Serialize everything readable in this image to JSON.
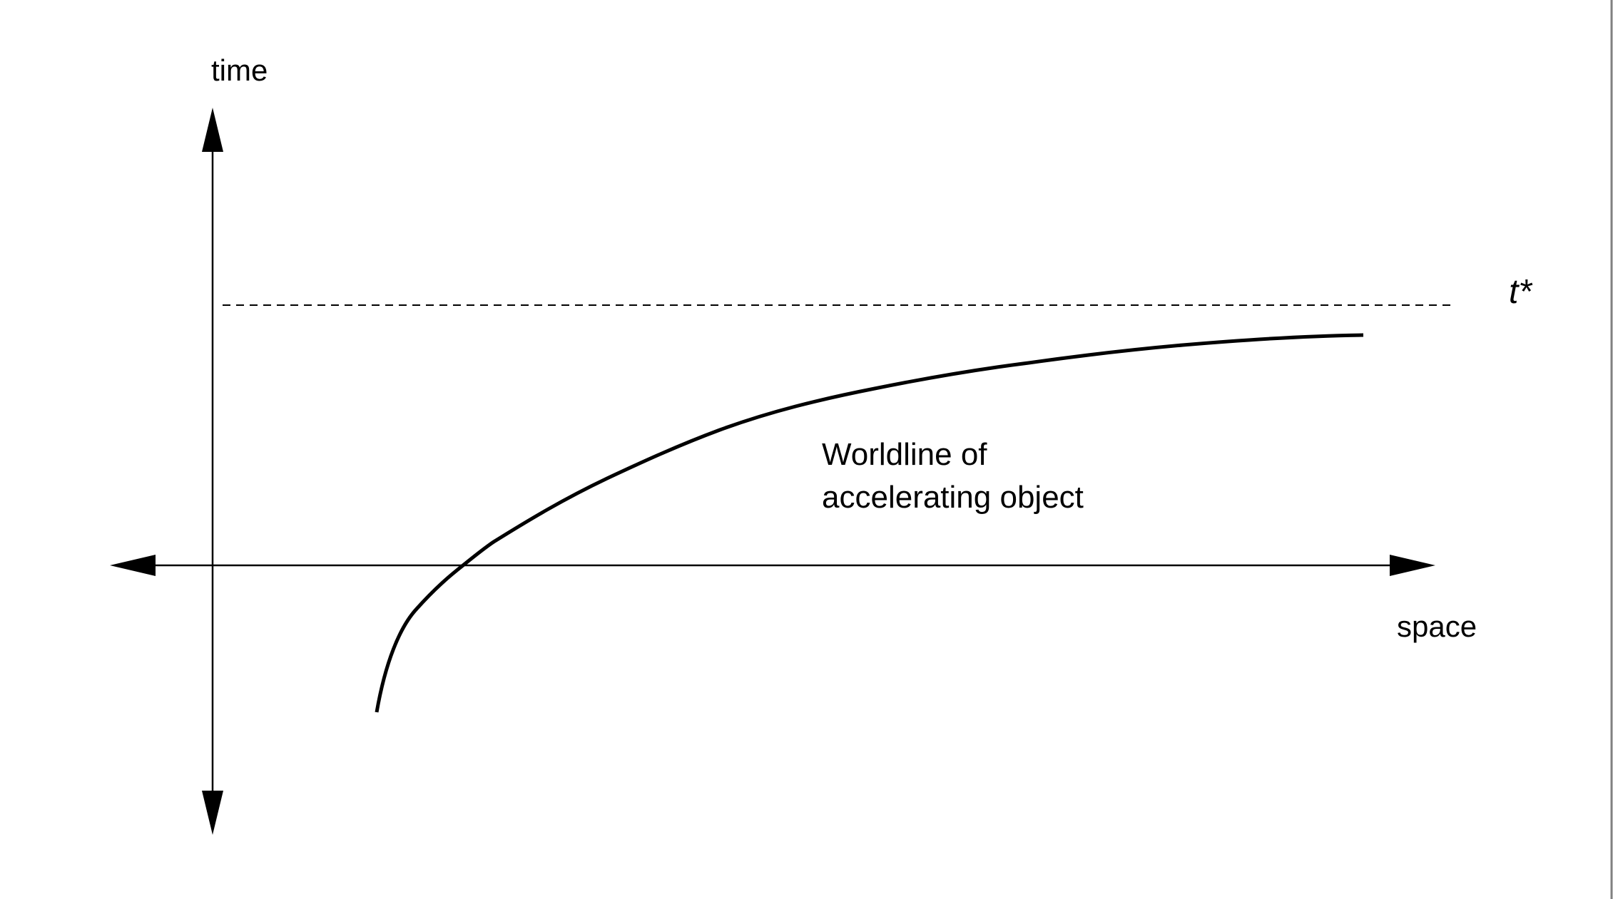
{
  "diagram": {
    "axis_labels": {
      "vertical": "time",
      "horizontal": "space"
    },
    "dashed_line_label": "t*",
    "curve_label": [
      "Worldline of",
      "accelerating object"
    ],
    "colors": {
      "ink": "#000000",
      "background": "#ffffff",
      "border": "#808080"
    }
  }
}
